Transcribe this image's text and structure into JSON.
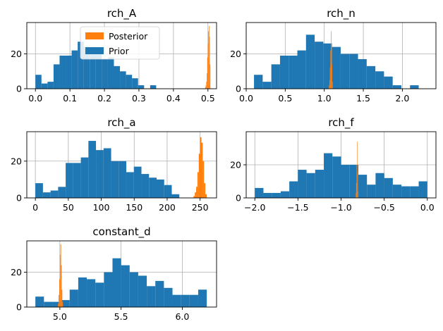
{
  "chart_data": [
    {
      "type": "histogram",
      "title": "rch_A",
      "xlim": [
        -0.025,
        0.525
      ],
      "ylim": [
        0,
        38
      ],
      "xticks": [
        0.0,
        0.1,
        0.2,
        0.3,
        0.4,
        0.5
      ],
      "xtick_labels": [
        "0.0",
        "0.1",
        "0.2",
        "0.3",
        "0.4",
        "0.5"
      ],
      "yticks": [
        0,
        20
      ],
      "ytick_labels": [
        "0",
        "20"
      ],
      "grid": true,
      "legend": {
        "placement": "upper-center",
        "entries": [
          "Posterior",
          "Prior"
        ]
      },
      "series": [
        {
          "name": "Prior",
          "color": "#1f77b4",
          "bin_edges": [
            0.0,
            0.0175,
            0.035,
            0.0525,
            0.07,
            0.0875,
            0.105,
            0.1225,
            0.14,
            0.1575,
            0.175,
            0.1925,
            0.21,
            0.2275,
            0.245,
            0.2625,
            0.28,
            0.2975,
            0.315,
            0.3325,
            0.35
          ],
          "counts": [
            8,
            3,
            4,
            14,
            19,
            19,
            22,
            27,
            24,
            24,
            20,
            17,
            18,
            13,
            10,
            8,
            6,
            2,
            0,
            2
          ]
        },
        {
          "name": "Posterior",
          "color": "#ff7f0e",
          "bin_edges": [
            0.492,
            0.4935,
            0.495,
            0.4965,
            0.498,
            0.4995,
            0.501,
            0.5025,
            0.504,
            0.5055,
            0.507
          ],
          "counts": [
            1,
            2,
            4,
            9,
            18,
            26,
            33,
            36,
            30,
            14
          ]
        }
      ]
    },
    {
      "type": "histogram",
      "title": "rch_n",
      "xlim": [
        0.0,
        2.43
      ],
      "ylim": [
        0,
        38
      ],
      "xticks": [
        0.0,
        0.5,
        1.0,
        1.5,
        2.0
      ],
      "xtick_labels": [
        "0.0",
        "0.5",
        "1.0",
        "1.5",
        "2.0"
      ],
      "yticks": [
        0,
        20
      ],
      "ytick_labels": [
        "0",
        "20"
      ],
      "grid": true,
      "series": [
        {
          "name": "Prior",
          "color": "#1f77b4",
          "bin_edges": [
            0.1,
            0.211,
            0.322,
            0.433,
            0.544,
            0.655,
            0.766,
            0.877,
            0.988,
            1.099,
            1.21,
            1.321,
            1.432,
            1.543,
            1.654,
            1.765,
            1.876,
            1.987,
            2.098,
            2.209,
            2.32
          ],
          "counts": [
            8,
            4,
            14,
            19,
            19,
            22,
            31,
            27,
            26,
            24,
            20,
            20,
            17,
            13,
            10,
            7,
            2,
            0,
            2,
            0
          ]
        },
        {
          "name": "Posterior",
          "color": "#ff7f0e",
          "bin_edges": [
            1.06,
            1.066,
            1.072,
            1.078,
            1.084,
            1.09,
            1.096,
            1.102,
            1.108
          ],
          "counts": [
            2,
            5,
            12,
            22,
            33,
            26,
            14,
            4
          ]
        }
      ]
    },
    {
      "type": "histogram",
      "title": "rch_a",
      "xlim": [
        -13,
        275
      ],
      "ylim": [
        0,
        36
      ],
      "xticks": [
        0,
        50,
        100,
        150,
        200,
        250
      ],
      "xtick_labels": [
        "0",
        "50",
        "100",
        "150",
        "200",
        "250"
      ],
      "yticks": [
        0,
        20
      ],
      "ytick_labels": [
        "0",
        "20"
      ],
      "grid": true,
      "series": [
        {
          "name": "Prior",
          "color": "#1f77b4",
          "bin_edges": [
            0,
            11.5,
            23,
            34.5,
            46,
            57.5,
            69,
            80.5,
            92,
            103.5,
            115,
            126.5,
            138,
            149.5,
            161,
            172.5,
            184,
            195.5,
            207,
            218.5,
            230
          ],
          "counts": [
            8,
            3,
            4,
            6,
            19,
            19,
            22,
            31,
            26,
            27,
            20,
            20,
            14,
            17,
            13,
            11,
            10,
            7,
            2,
            0
          ]
        },
        {
          "name": "Posterior",
          "color": "#ff7f0e",
          "bin_edges": [
            240,
            242,
            244,
            246,
            248,
            250,
            252,
            254,
            256,
            258,
            260
          ],
          "counts": [
            1,
            3,
            6,
            14,
            24,
            33,
            30,
            20,
            8,
            2
          ]
        }
      ]
    },
    {
      "type": "histogram",
      "title": "rch_f",
      "xlim": [
        -2.1,
        0.1
      ],
      "ylim": [
        0,
        40
      ],
      "xticks": [
        -2.0,
        -1.5,
        -1.0,
        -0.5,
        0.0
      ],
      "xtick_labels": [
        "−2.0",
        "−1.5",
        "−1.0",
        "−0.5",
        "0.0"
      ],
      "yticks": [
        0,
        20
      ],
      "ytick_labels": [
        "0",
        "20"
      ],
      "grid": true,
      "series": [
        {
          "name": "Prior",
          "color": "#1f77b4",
          "bin_edges": [
            -2.0,
            -1.9,
            -1.8,
            -1.7,
            -1.6,
            -1.5,
            -1.4,
            -1.3,
            -1.2,
            -1.1,
            -1.0,
            -0.9,
            -0.8,
            -0.7,
            -0.6,
            -0.5,
            -0.4,
            -0.3,
            -0.2,
            -0.1,
            0.0
          ],
          "counts": [
            6,
            3,
            3,
            4,
            10,
            17,
            15,
            17,
            27,
            25,
            20,
            20,
            14,
            8,
            15,
            12,
            8,
            7,
            7,
            10
          ]
        },
        {
          "name": "Posterior",
          "color": "#ff7f0e",
          "bin_edges": [
            -0.83,
            -0.825,
            -0.82,
            -0.815,
            -0.81,
            -0.805,
            -0.8
          ],
          "counts": [
            3,
            9,
            20,
            34,
            16,
            4
          ]
        }
      ]
    },
    {
      "type": "histogram",
      "title": "constant_d",
      "xlim": [
        4.73,
        6.28
      ],
      "ylim": [
        0,
        38
      ],
      "xticks": [
        5.0,
        5.5,
        6.0
      ],
      "xtick_labels": [
        "5.0",
        "5.5",
        "6.0"
      ],
      "yticks": [
        0,
        20
      ],
      "ytick_labels": [
        "0",
        "20"
      ],
      "grid": true,
      "series": [
        {
          "name": "Prior",
          "color": "#1f77b4",
          "bin_edges": [
            4.8,
            4.87,
            4.94,
            5.01,
            5.08,
            5.15,
            5.22,
            5.29,
            5.36,
            5.43,
            5.5,
            5.57,
            5.64,
            5.71,
            5.78,
            5.85,
            5.92,
            5.99,
            6.06,
            6.13,
            6.2
          ],
          "counts": [
            6,
            3,
            3,
            4,
            10,
            17,
            16,
            14,
            20,
            28,
            24,
            20,
            18,
            12,
            15,
            11,
            7,
            7,
            7,
            10
          ]
        },
        {
          "name": "Posterior",
          "color": "#ff7f0e",
          "bin_edges": [
            4.985,
            4.99,
            4.995,
            5.0,
            5.005,
            5.01,
            5.015,
            5.02,
            5.025
          ],
          "counts": [
            2,
            7,
            16,
            30,
            36,
            24,
            10,
            3
          ]
        }
      ]
    }
  ]
}
